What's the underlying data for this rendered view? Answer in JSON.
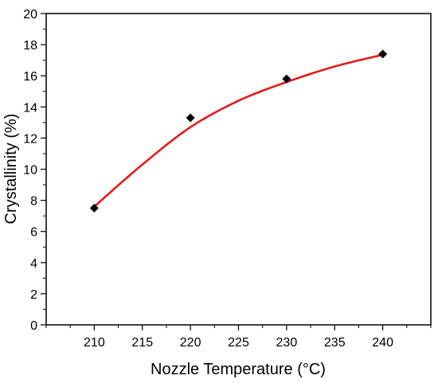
{
  "chart_data": {
    "type": "scatter",
    "xlabel": "Nozzle Temperature (°C)",
    "ylabel": "Crystallinity (%)",
    "xlim": [
      205,
      245
    ],
    "ylim": [
      0,
      20
    ],
    "x_ticks": [
      210,
      215,
      220,
      225,
      230,
      235,
      240
    ],
    "y_ticks": [
      0,
      2,
      4,
      6,
      8,
      10,
      12,
      14,
      16,
      18,
      20
    ],
    "grid": false,
    "series": [
      {
        "kind": "points",
        "marker": "diamond",
        "color": "#000000",
        "x": [
          210,
          220,
          230,
          240
        ],
        "y": [
          7.5,
          13.3,
          15.8,
          17.4
        ]
      },
      {
        "kind": "fit-curve",
        "color": "#e41a1c",
        "x": [
          210,
          215,
          220,
          225,
          230,
          235,
          240
        ],
        "y": [
          7.6,
          10.3,
          12.7,
          14.4,
          15.6,
          16.6,
          17.35
        ]
      }
    ]
  }
}
